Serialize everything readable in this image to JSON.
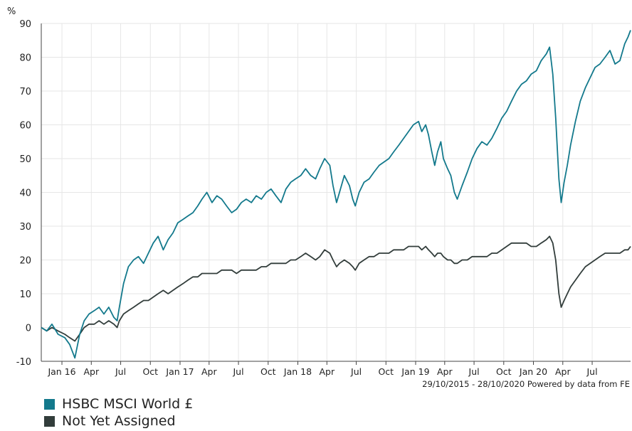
{
  "chart_data": {
    "type": "line",
    "title": "",
    "xlabel": "",
    "ylabel": "%",
    "xlim": [
      "2015-10-29",
      "2020-10-28"
    ],
    "ylim": [
      -10,
      90
    ],
    "yticks": [
      -10,
      0,
      10,
      20,
      30,
      40,
      50,
      60,
      70,
      80,
      90
    ],
    "xticks": [
      {
        "label": "Jan 16",
        "date": "2016-01-01"
      },
      {
        "label": "Apr",
        "date": "2016-04-01"
      },
      {
        "label": "Jul",
        "date": "2016-07-01"
      },
      {
        "label": "Oct",
        "date": "2016-10-01"
      },
      {
        "label": "Jan 17",
        "date": "2017-01-01"
      },
      {
        "label": "Apr",
        "date": "2017-04-01"
      },
      {
        "label": "Jul",
        "date": "2017-07-01"
      },
      {
        "label": "Oct",
        "date": "2017-10-01"
      },
      {
        "label": "Jan 18",
        "date": "2018-01-01"
      },
      {
        "label": "Apr",
        "date": "2018-04-01"
      },
      {
        "label": "Jul",
        "date": "2018-07-01"
      },
      {
        "label": "Oct",
        "date": "2018-10-01"
      },
      {
        "label": "Jan 19",
        "date": "2019-01-01"
      },
      {
        "label": "Apr",
        "date": "2019-04-01"
      },
      {
        "label": "Jul",
        "date": "2019-07-01"
      },
      {
        "label": "Oct",
        "date": "2019-10-01"
      },
      {
        "label": "Jan 20",
        "date": "2020-01-01"
      },
      {
        "label": "Apr",
        "date": "2020-04-01"
      },
      {
        "label": "Jul",
        "date": "2020-07-01"
      }
    ],
    "grid": true,
    "legend_position": "bottom-left",
    "footer": "29/10/2015 - 28/10/2020 Powered by data from FE",
    "series": [
      {
        "name": "HSBC MSCI World £",
        "color": "#13798c",
        "points": [
          [
            "2015-10-29",
            0
          ],
          [
            "2015-11-15",
            -1
          ],
          [
            "2015-12-01",
            1
          ],
          [
            "2015-12-20",
            -2
          ],
          [
            "2016-01-10",
            -3
          ],
          [
            "2016-01-25",
            -5
          ],
          [
            "2016-02-10",
            -9
          ],
          [
            "2016-02-25",
            -2
          ],
          [
            "2016-03-10",
            2
          ],
          [
            "2016-03-25",
            4
          ],
          [
            "2016-04-10",
            5
          ],
          [
            "2016-04-25",
            6
          ],
          [
            "2016-05-10",
            4
          ],
          [
            "2016-05-25",
            6
          ],
          [
            "2016-06-10",
            3
          ],
          [
            "2016-06-20",
            2
          ],
          [
            "2016-06-27",
            6
          ],
          [
            "2016-07-10",
            13
          ],
          [
            "2016-07-25",
            18
          ],
          [
            "2016-08-10",
            20
          ],
          [
            "2016-08-25",
            21
          ],
          [
            "2016-09-10",
            19
          ],
          [
            "2016-09-25",
            22
          ],
          [
            "2016-10-10",
            25
          ],
          [
            "2016-10-25",
            27
          ],
          [
            "2016-11-10",
            23
          ],
          [
            "2016-11-25",
            26
          ],
          [
            "2016-12-10",
            28
          ],
          [
            "2016-12-25",
            31
          ],
          [
            "2017-01-10",
            32
          ],
          [
            "2017-01-25",
            33
          ],
          [
            "2017-02-10",
            34
          ],
          [
            "2017-02-25",
            36
          ],
          [
            "2017-03-10",
            38
          ],
          [
            "2017-03-25",
            40
          ],
          [
            "2017-04-10",
            37
          ],
          [
            "2017-04-25",
            39
          ],
          [
            "2017-05-10",
            38
          ],
          [
            "2017-05-25",
            36
          ],
          [
            "2017-06-10",
            34
          ],
          [
            "2017-06-25",
            35
          ],
          [
            "2017-07-10",
            37
          ],
          [
            "2017-07-25",
            38
          ],
          [
            "2017-08-10",
            37
          ],
          [
            "2017-08-25",
            39
          ],
          [
            "2017-09-10",
            38
          ],
          [
            "2017-09-25",
            40
          ],
          [
            "2017-10-10",
            41
          ],
          [
            "2017-10-25",
            39
          ],
          [
            "2017-11-10",
            37
          ],
          [
            "2017-11-25",
            41
          ],
          [
            "2017-12-10",
            43
          ],
          [
            "2017-12-25",
            44
          ],
          [
            "2018-01-10",
            45
          ],
          [
            "2018-01-25",
            47
          ],
          [
            "2018-02-10",
            45
          ],
          [
            "2018-02-25",
            44
          ],
          [
            "2018-03-10",
            47
          ],
          [
            "2018-03-25",
            50
          ],
          [
            "2018-04-10",
            48
          ],
          [
            "2018-04-20",
            42
          ],
          [
            "2018-05-01",
            37
          ],
          [
            "2018-05-10",
            40
          ],
          [
            "2018-05-25",
            45
          ],
          [
            "2018-06-10",
            42
          ],
          [
            "2018-06-20",
            38
          ],
          [
            "2018-06-28",
            36
          ],
          [
            "2018-07-10",
            40
          ],
          [
            "2018-07-25",
            43
          ],
          [
            "2018-08-10",
            44
          ],
          [
            "2018-08-25",
            46
          ],
          [
            "2018-09-10",
            48
          ],
          [
            "2018-09-25",
            49
          ],
          [
            "2018-10-10",
            50
          ],
          [
            "2018-10-25",
            52
          ],
          [
            "2018-11-10",
            54
          ],
          [
            "2018-11-25",
            56
          ],
          [
            "2018-12-10",
            58
          ],
          [
            "2018-12-25",
            60
          ],
          [
            "2019-01-10",
            61
          ],
          [
            "2019-01-20",
            58
          ],
          [
            "2019-02-01",
            60
          ],
          [
            "2019-02-10",
            57
          ],
          [
            "2019-02-20",
            52
          ],
          [
            "2019-03-01",
            48
          ],
          [
            "2019-03-10",
            52
          ],
          [
            "2019-03-20",
            55
          ],
          [
            "2019-03-28",
            50
          ],
          [
            "2019-04-10",
            47
          ],
          [
            "2019-04-20",
            45
          ],
          [
            "2019-05-01",
            40
          ],
          [
            "2019-05-10",
            38
          ],
          [
            "2019-05-25",
            42
          ],
          [
            "2019-06-10",
            46
          ],
          [
            "2019-06-25",
            50
          ],
          [
            "2019-07-10",
            53
          ],
          [
            "2019-07-25",
            55
          ],
          [
            "2019-08-10",
            54
          ],
          [
            "2019-08-25",
            56
          ],
          [
            "2019-09-10",
            59
          ],
          [
            "2019-09-25",
            62
          ],
          [
            "2019-10-10",
            64
          ],
          [
            "2019-10-25",
            67
          ],
          [
            "2019-11-10",
            70
          ],
          [
            "2019-11-25",
            72
          ],
          [
            "2019-12-10",
            73
          ],
          [
            "2019-12-25",
            75
          ],
          [
            "2020-01-10",
            76
          ],
          [
            "2020-01-25",
            79
          ],
          [
            "2020-02-10",
            81
          ],
          [
            "2020-02-20",
            83
          ],
          [
            "2020-03-01",
            75
          ],
          [
            "2020-03-10",
            62
          ],
          [
            "2020-03-20",
            44
          ],
          [
            "2020-03-27",
            37
          ],
          [
            "2020-04-05",
            43
          ],
          [
            "2020-04-15",
            48
          ],
          [
            "2020-04-25",
            54
          ],
          [
            "2020-05-10",
            61
          ],
          [
            "2020-05-25",
            67
          ],
          [
            "2020-06-10",
            71
          ],
          [
            "2020-06-25",
            74
          ],
          [
            "2020-07-10",
            77
          ],
          [
            "2020-07-25",
            78
          ],
          [
            "2020-08-10",
            80
          ],
          [
            "2020-08-25",
            82
          ],
          [
            "2020-09-10",
            78
          ],
          [
            "2020-09-25",
            79
          ],
          [
            "2020-10-10",
            84
          ],
          [
            "2020-10-20",
            86
          ],
          [
            "2020-10-28",
            88
          ]
        ]
      },
      {
        "name": "Not Yet Assigned",
        "color": "#323d3b",
        "points": [
          [
            "2015-10-29",
            0
          ],
          [
            "2015-11-15",
            -1
          ],
          [
            "2015-12-01",
            0
          ],
          [
            "2015-12-20",
            -1
          ],
          [
            "2016-01-10",
            -2
          ],
          [
            "2016-01-25",
            -3
          ],
          [
            "2016-02-10",
            -4
          ],
          [
            "2016-02-25",
            -2
          ],
          [
            "2016-03-10",
            0
          ],
          [
            "2016-03-25",
            1
          ],
          [
            "2016-04-10",
            1
          ],
          [
            "2016-04-25",
            2
          ],
          [
            "2016-05-10",
            1
          ],
          [
            "2016-05-25",
            2
          ],
          [
            "2016-06-10",
            1
          ],
          [
            "2016-06-20",
            0
          ],
          [
            "2016-06-27",
            2
          ],
          [
            "2016-07-10",
            4
          ],
          [
            "2016-07-25",
            5
          ],
          [
            "2016-08-10",
            6
          ],
          [
            "2016-08-25",
            7
          ],
          [
            "2016-09-10",
            8
          ],
          [
            "2016-09-25",
            8
          ],
          [
            "2016-10-10",
            9
          ],
          [
            "2016-10-25",
            10
          ],
          [
            "2016-11-10",
            11
          ],
          [
            "2016-11-25",
            10
          ],
          [
            "2016-12-10",
            11
          ],
          [
            "2016-12-25",
            12
          ],
          [
            "2017-01-10",
            13
          ],
          [
            "2017-01-25",
            14
          ],
          [
            "2017-02-10",
            15
          ],
          [
            "2017-02-25",
            15
          ],
          [
            "2017-03-10",
            16
          ],
          [
            "2017-03-25",
            16
          ],
          [
            "2017-04-10",
            16
          ],
          [
            "2017-04-25",
            16
          ],
          [
            "2017-05-10",
            17
          ],
          [
            "2017-05-25",
            17
          ],
          [
            "2017-06-10",
            17
          ],
          [
            "2017-06-25",
            16
          ],
          [
            "2017-07-10",
            17
          ],
          [
            "2017-07-25",
            17
          ],
          [
            "2017-08-10",
            17
          ],
          [
            "2017-08-25",
            17
          ],
          [
            "2017-09-10",
            18
          ],
          [
            "2017-09-25",
            18
          ],
          [
            "2017-10-10",
            19
          ],
          [
            "2017-10-25",
            19
          ],
          [
            "2017-11-10",
            19
          ],
          [
            "2017-11-25",
            19
          ],
          [
            "2017-12-10",
            20
          ],
          [
            "2017-12-25",
            20
          ],
          [
            "2018-01-10",
            21
          ],
          [
            "2018-01-25",
            22
          ],
          [
            "2018-02-10",
            21
          ],
          [
            "2018-02-25",
            20
          ],
          [
            "2018-03-10",
            21
          ],
          [
            "2018-03-25",
            23
          ],
          [
            "2018-04-10",
            22
          ],
          [
            "2018-04-20",
            20
          ],
          [
            "2018-05-01",
            18
          ],
          [
            "2018-05-10",
            19
          ],
          [
            "2018-05-25",
            20
          ],
          [
            "2018-06-10",
            19
          ],
          [
            "2018-06-20",
            18
          ],
          [
            "2018-06-28",
            17
          ],
          [
            "2018-07-10",
            19
          ],
          [
            "2018-07-25",
            20
          ],
          [
            "2018-08-10",
            21
          ],
          [
            "2018-08-25",
            21
          ],
          [
            "2018-09-10",
            22
          ],
          [
            "2018-09-25",
            22
          ],
          [
            "2018-10-10",
            22
          ],
          [
            "2018-10-25",
            23
          ],
          [
            "2018-11-10",
            23
          ],
          [
            "2018-11-25",
            23
          ],
          [
            "2018-12-10",
            24
          ],
          [
            "2018-12-25",
            24
          ],
          [
            "2019-01-10",
            24
          ],
          [
            "2019-01-20",
            23
          ],
          [
            "2019-02-01",
            24
          ],
          [
            "2019-02-10",
            23
          ],
          [
            "2019-02-20",
            22
          ],
          [
            "2019-03-01",
            21
          ],
          [
            "2019-03-10",
            22
          ],
          [
            "2019-03-20",
            22
          ],
          [
            "2019-03-28",
            21
          ],
          [
            "2019-04-10",
            20
          ],
          [
            "2019-04-20",
            20
          ],
          [
            "2019-05-01",
            19
          ],
          [
            "2019-05-10",
            19
          ],
          [
            "2019-05-25",
            20
          ],
          [
            "2019-06-10",
            20
          ],
          [
            "2019-06-25",
            21
          ],
          [
            "2019-07-10",
            21
          ],
          [
            "2019-07-25",
            21
          ],
          [
            "2019-08-10",
            21
          ],
          [
            "2019-08-25",
            22
          ],
          [
            "2019-09-10",
            22
          ],
          [
            "2019-09-25",
            23
          ],
          [
            "2019-10-10",
            24
          ],
          [
            "2019-10-25",
            25
          ],
          [
            "2019-11-10",
            25
          ],
          [
            "2019-11-25",
            25
          ],
          [
            "2019-12-10",
            25
          ],
          [
            "2019-12-25",
            24
          ],
          [
            "2020-01-10",
            24
          ],
          [
            "2020-01-25",
            25
          ],
          [
            "2020-02-10",
            26
          ],
          [
            "2020-02-20",
            27
          ],
          [
            "2020-03-01",
            25
          ],
          [
            "2020-03-10",
            20
          ],
          [
            "2020-03-20",
            10
          ],
          [
            "2020-03-27",
            6
          ],
          [
            "2020-04-05",
            8
          ],
          [
            "2020-04-15",
            10
          ],
          [
            "2020-04-25",
            12
          ],
          [
            "2020-05-10",
            14
          ],
          [
            "2020-05-25",
            16
          ],
          [
            "2020-06-10",
            18
          ],
          [
            "2020-06-25",
            19
          ],
          [
            "2020-07-10",
            20
          ],
          [
            "2020-07-25",
            21
          ],
          [
            "2020-08-10",
            22
          ],
          [
            "2020-08-25",
            22
          ],
          [
            "2020-09-10",
            22
          ],
          [
            "2020-09-25",
            22
          ],
          [
            "2020-10-10",
            23
          ],
          [
            "2020-10-20",
            23
          ],
          [
            "2020-10-28",
            24
          ]
        ]
      }
    ]
  }
}
